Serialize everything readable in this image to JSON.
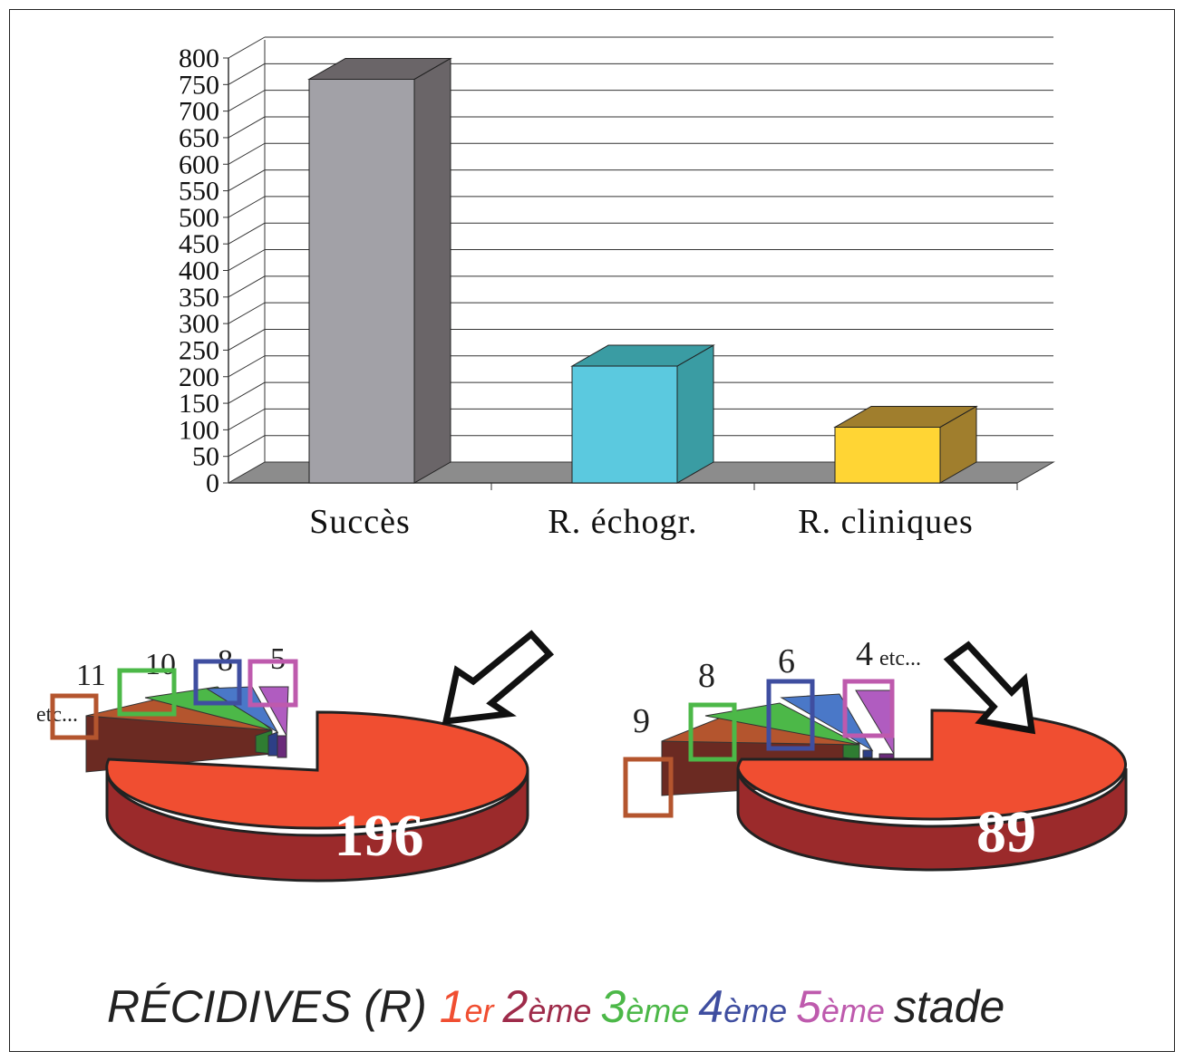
{
  "chart_data": [
    {
      "type": "bar",
      "categories": [
        "Succès",
        "R. échogr.",
        "R. cliniques"
      ],
      "values": [
        760,
        220,
        105
      ],
      "ylim": [
        0,
        800
      ],
      "yticks": [
        "0",
        "50",
        "100",
        "150",
        "200",
        "250",
        "300",
        "350",
        "400",
        "450",
        "500",
        "550",
        "600",
        "650",
        "700",
        "750",
        "800"
      ],
      "bar_colors": [
        "#a2a1a7",
        "#5bc9df",
        "#ffd534"
      ],
      "bar_side_colors": [
        "#6a6568",
        "#3a9ca3",
        "#a07e2d"
      ],
      "grid": true
    },
    {
      "type": "pie",
      "total_label": "196",
      "slices": [
        {
          "label": "11",
          "color": "#b4552e"
        },
        {
          "label": "10",
          "color": "#4cb848"
        },
        {
          "label": "8",
          "color": "#4457a5"
        },
        {
          "label": "5",
          "color": "#be5aad"
        }
      ],
      "etc_label": "etc..."
    },
    {
      "type": "pie",
      "total_label": "89",
      "slices": [
        {
          "label": "9",
          "color": "#b4552e"
        },
        {
          "label": "8",
          "color": "#4cb848"
        },
        {
          "label": "6",
          "color": "#4457a5"
        },
        {
          "label": "4",
          "color": "#be5aad"
        }
      ],
      "etc_label": "etc..."
    }
  ],
  "legend": {
    "prefix": "RÉCIDIVES (R)",
    "stages": [
      {
        "num": "1",
        "suffix": "er",
        "color": "#f04e31"
      },
      {
        "num": "2",
        "suffix": "ème",
        "color": "#9e2b4a"
      },
      {
        "num": "3",
        "suffix": "ème",
        "color": "#4cb848"
      },
      {
        "num": "4",
        "suffix": "ème",
        "color": "#3f4ea0"
      },
      {
        "num": "5",
        "suffix": "ème",
        "color": "#be5aad"
      }
    ],
    "end": "stade"
  }
}
